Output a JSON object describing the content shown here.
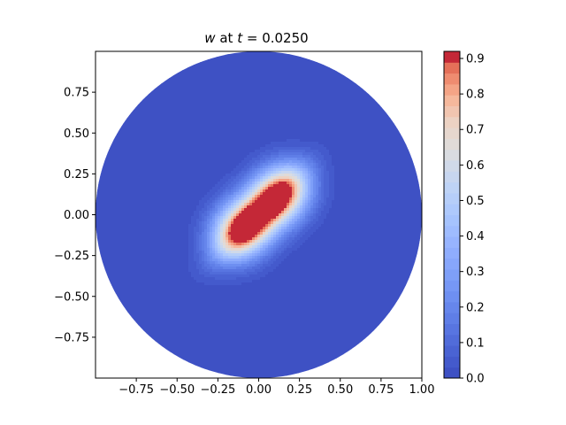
{
  "chart_data": {
    "type": "heatmap",
    "title": {
      "variable": "w",
      "mid": " at ",
      "time_symbol": "t",
      "equals": " = ",
      "time_value": "0.0250"
    },
    "xlabel": "",
    "ylabel": "",
    "xlim": [
      -1.0,
      1.0
    ],
    "ylim": [
      -1.0,
      1.0
    ],
    "x_ticks": [
      {
        "value": -0.75,
        "label": "−0.75"
      },
      {
        "value": -0.5,
        "label": "−0.50"
      },
      {
        "value": -0.25,
        "label": "−0.25"
      },
      {
        "value": 0.0,
        "label": "0.00"
      },
      {
        "value": 0.25,
        "label": "0.25"
      },
      {
        "value": 0.5,
        "label": "0.50"
      },
      {
        "value": 0.75,
        "label": "0.75"
      },
      {
        "value": 1.0,
        "label": "1.00"
      }
    ],
    "y_ticks": [
      {
        "value": -0.75,
        "label": "−0.75"
      },
      {
        "value": -0.5,
        "label": "−0.50"
      },
      {
        "value": -0.25,
        "label": "−0.25"
      },
      {
        "value": 0.0,
        "label": "0.00"
      },
      {
        "value": 0.25,
        "label": "0.25"
      },
      {
        "value": 0.5,
        "label": "0.50"
      },
      {
        "value": 0.75,
        "label": "0.75"
      }
    ],
    "domain": {
      "shape": "disk",
      "center": [
        0,
        0
      ],
      "radius": 1.0
    },
    "field": {
      "description_of_shape": "two overlapping gaussian bumps along the diagonal",
      "bumps": [
        {
          "center": [
            -0.1,
            -0.09
          ],
          "amplitude": 0.82,
          "sigma_major": 0.14,
          "sigma_minor": 0.12,
          "angle_deg": 45
        },
        {
          "center": [
            0.13,
            0.12
          ],
          "amplitude": 0.82,
          "sigma_major": 0.14,
          "sigma_minor": 0.12,
          "angle_deg": 45
        },
        {
          "center": [
            0.0,
            0.0
          ],
          "amplitude": 0.35,
          "sigma_major": 0.24,
          "sigma_minor": 0.07,
          "angle_deg": 45
        }
      ],
      "max_value": 0.92
    },
    "colorbar": {
      "colormap": "coolwarm",
      "range": [
        0.0,
        0.92
      ],
      "levels": 30,
      "ticks": [
        {
          "value": 0.0,
          "label": "0.0"
        },
        {
          "value": 0.1,
          "label": "0.1"
        },
        {
          "value": 0.2,
          "label": "0.2"
        },
        {
          "value": 0.3,
          "label": "0.3"
        },
        {
          "value": 0.4,
          "label": "0.4"
        },
        {
          "value": 0.5,
          "label": "0.5"
        },
        {
          "value": 0.6,
          "label": "0.6"
        },
        {
          "value": 0.7,
          "label": "0.7"
        },
        {
          "value": 0.8,
          "label": "0.8"
        },
        {
          "value": 0.9,
          "label": "0.9"
        }
      ]
    },
    "grid": false,
    "legend": "none"
  }
}
